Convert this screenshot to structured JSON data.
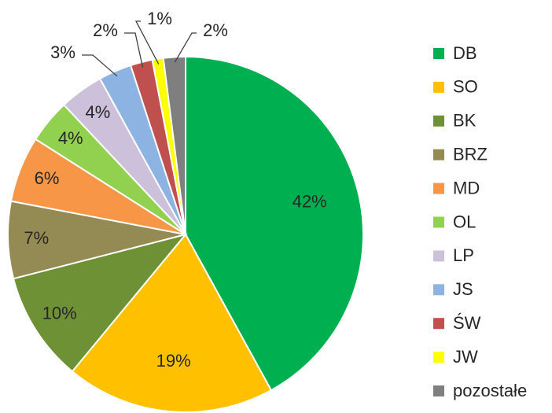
{
  "chart_data": {
    "type": "pie",
    "categories": [
      "DB",
      "SO",
      "BK",
      "BRZ",
      "MD",
      "OL",
      "LP",
      "JS",
      "ŚW",
      "JW",
      "pozostałe"
    ],
    "values": [
      42,
      19,
      10,
      7,
      6,
      4,
      4,
      3,
      2,
      1,
      2
    ],
    "value_labels": [
      "42%",
      "19%",
      "10%",
      "7%",
      "6%",
      "4%",
      "4%",
      "3%",
      "2%",
      "1%",
      "2%"
    ],
    "colors": [
      "#00b050",
      "#ffc000",
      "#6f9136",
      "#948a54",
      "#f79646",
      "#92d050",
      "#ccc0da",
      "#8db3e2",
      "#c0504d",
      "#ffff00",
      "#7f7f7f"
    ],
    "legend": "right"
  }
}
